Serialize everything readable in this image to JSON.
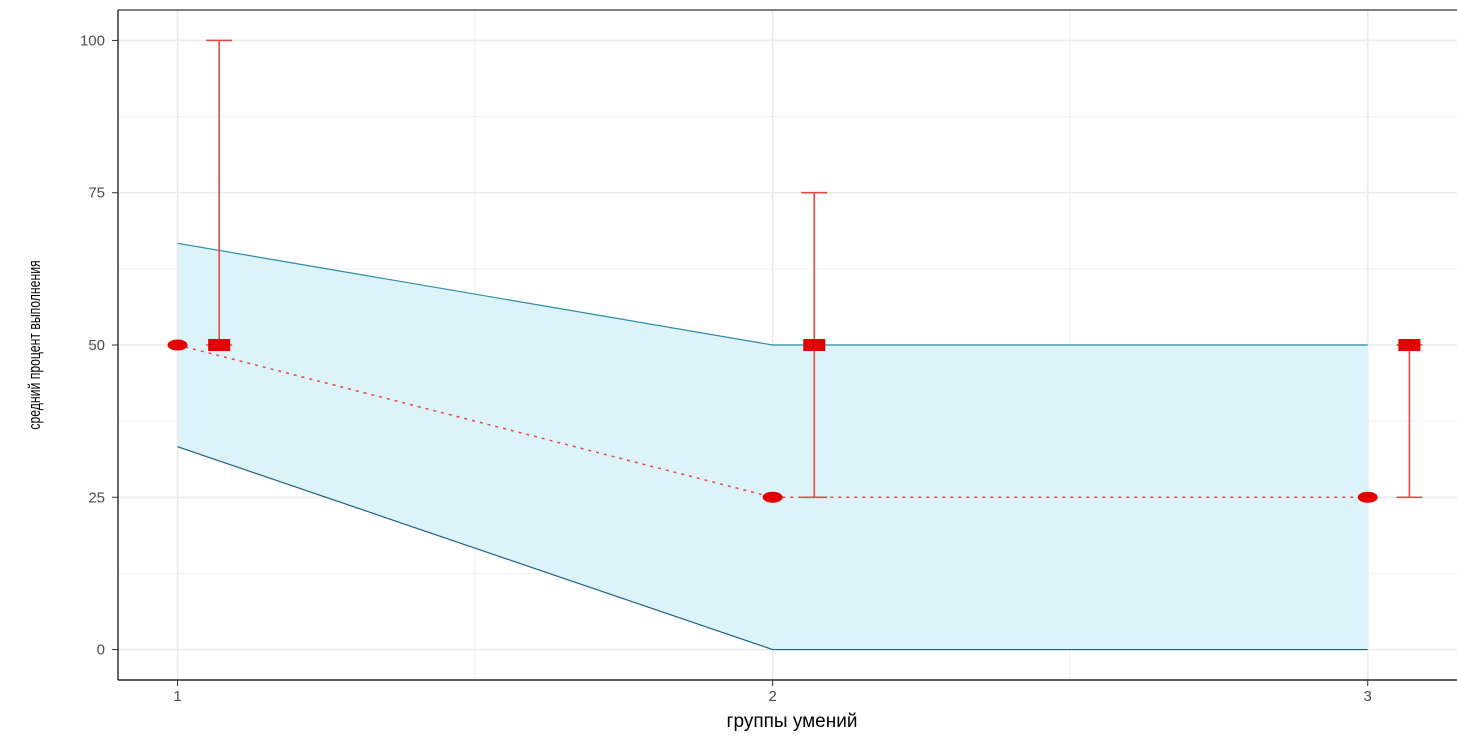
{
  "chart_data": {
    "type": "line",
    "title": "",
    "xlabel": "группы умений",
    "ylabel": "средний процент выполнения",
    "x": [
      1,
      2,
      3
    ],
    "xlim": [
      0.9,
      3.15
    ],
    "ylim": [
      -5,
      105
    ],
    "x_ticks": [
      "1",
      "2",
      "3"
    ],
    "y_ticks": [
      "0",
      "25",
      "50",
      "75",
      "100"
    ],
    "grid": true,
    "series": [
      {
        "kind": "band",
        "x": [
          1,
          2,
          3
        ],
        "lower": [
          33.3,
          0,
          0
        ],
        "upper": [
          66.7,
          50,
          50
        ]
      },
      {
        "kind": "dotted-line-points",
        "x": [
          1,
          2,
          3
        ],
        "values": [
          50,
          25,
          25
        ]
      },
      {
        "kind": "square-points-errorbars",
        "x": [
          1.07,
          2.07,
          3.07
        ],
        "values": [
          50,
          50,
          50
        ],
        "lower": [
          50,
          25,
          25
        ],
        "upper": [
          100,
          75,
          50
        ]
      }
    ],
    "colors": {
      "band_fill": "#dcf3f9",
      "band_line": "#2b8ca6",
      "points": "#e50000",
      "errorbar": "#e34a4a"
    }
  }
}
